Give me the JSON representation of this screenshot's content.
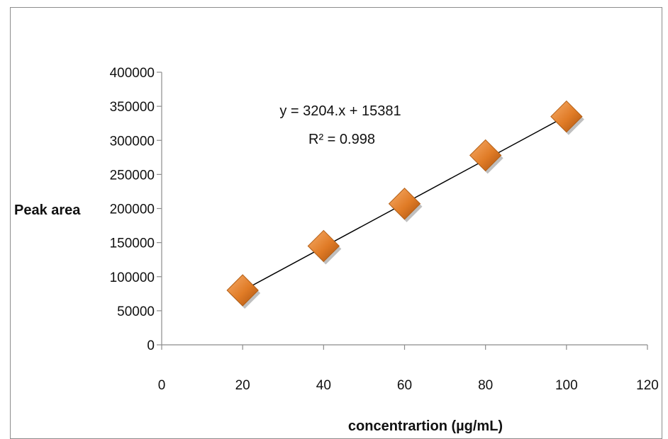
{
  "chart_data": {
    "type": "scatter",
    "title": "",
    "xlabel": "concentrartion  (µg/mL)",
    "ylabel": "Peak area",
    "xlim": [
      0,
      120
    ],
    "ylim": [
      0,
      400000
    ],
    "x_ticks": [
      0,
      20,
      40,
      60,
      80,
      100,
      120
    ],
    "y_ticks": [
      0,
      50000,
      100000,
      150000,
      200000,
      250000,
      300000,
      350000,
      400000
    ],
    "grid": false,
    "legend": "none",
    "marker_color": "#e07b26",
    "trendline_color": "#000000",
    "series": [
      {
        "x": [
          20,
          40,
          60,
          80,
          100
        ],
        "y": [
          80000,
          145000,
          207000,
          278000,
          335000
        ]
      }
    ],
    "trendline": {
      "slope": 3204,
      "intercept": 15381
    },
    "annotations": {
      "equation": "y = 3204.x  + 15381",
      "r_squared": "R² = 0.998"
    }
  }
}
